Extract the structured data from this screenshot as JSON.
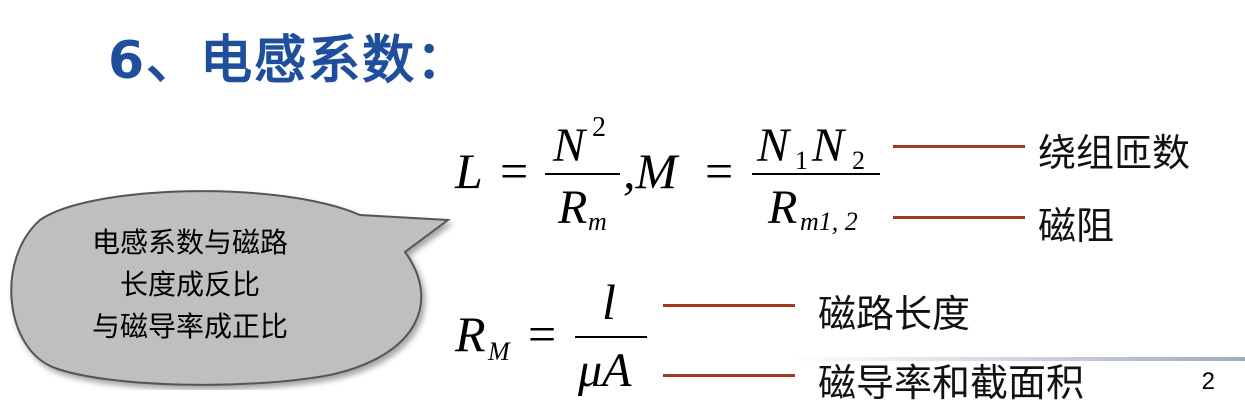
{
  "title": "6、电感系数：",
  "formula1": {
    "L": "L",
    "eq1": "=",
    "num1_base": "N",
    "num1_sup": "2",
    "den1_base": "R",
    "den1_sub": "m",
    "comma_M": ",M",
    "eq2": "=",
    "num2_a": "N",
    "num2_a_sub": "1",
    "num2_b": "N",
    "num2_b_sub": "2",
    "den2_base": "R",
    "den2_sub": "m1, 2"
  },
  "formula2": {
    "lhs_base": "R",
    "lhs_sub": "M",
    "eq": "=",
    "num": "l",
    "den": "μA"
  },
  "annotations": {
    "turns": "绕组匝数",
    "reluctance": "磁阻",
    "path_length": "磁路长度",
    "permeability_area": "磁导率和截面积"
  },
  "callout": {
    "line1": "电感系数与磁路",
    "line2": "长度成反比",
    "line3": "与磁导率成正比"
  },
  "colors": {
    "title": "#1f4e9c",
    "leader": "#a0391f",
    "bubble_fill": "#bfbfbf"
  },
  "page_number": "2"
}
